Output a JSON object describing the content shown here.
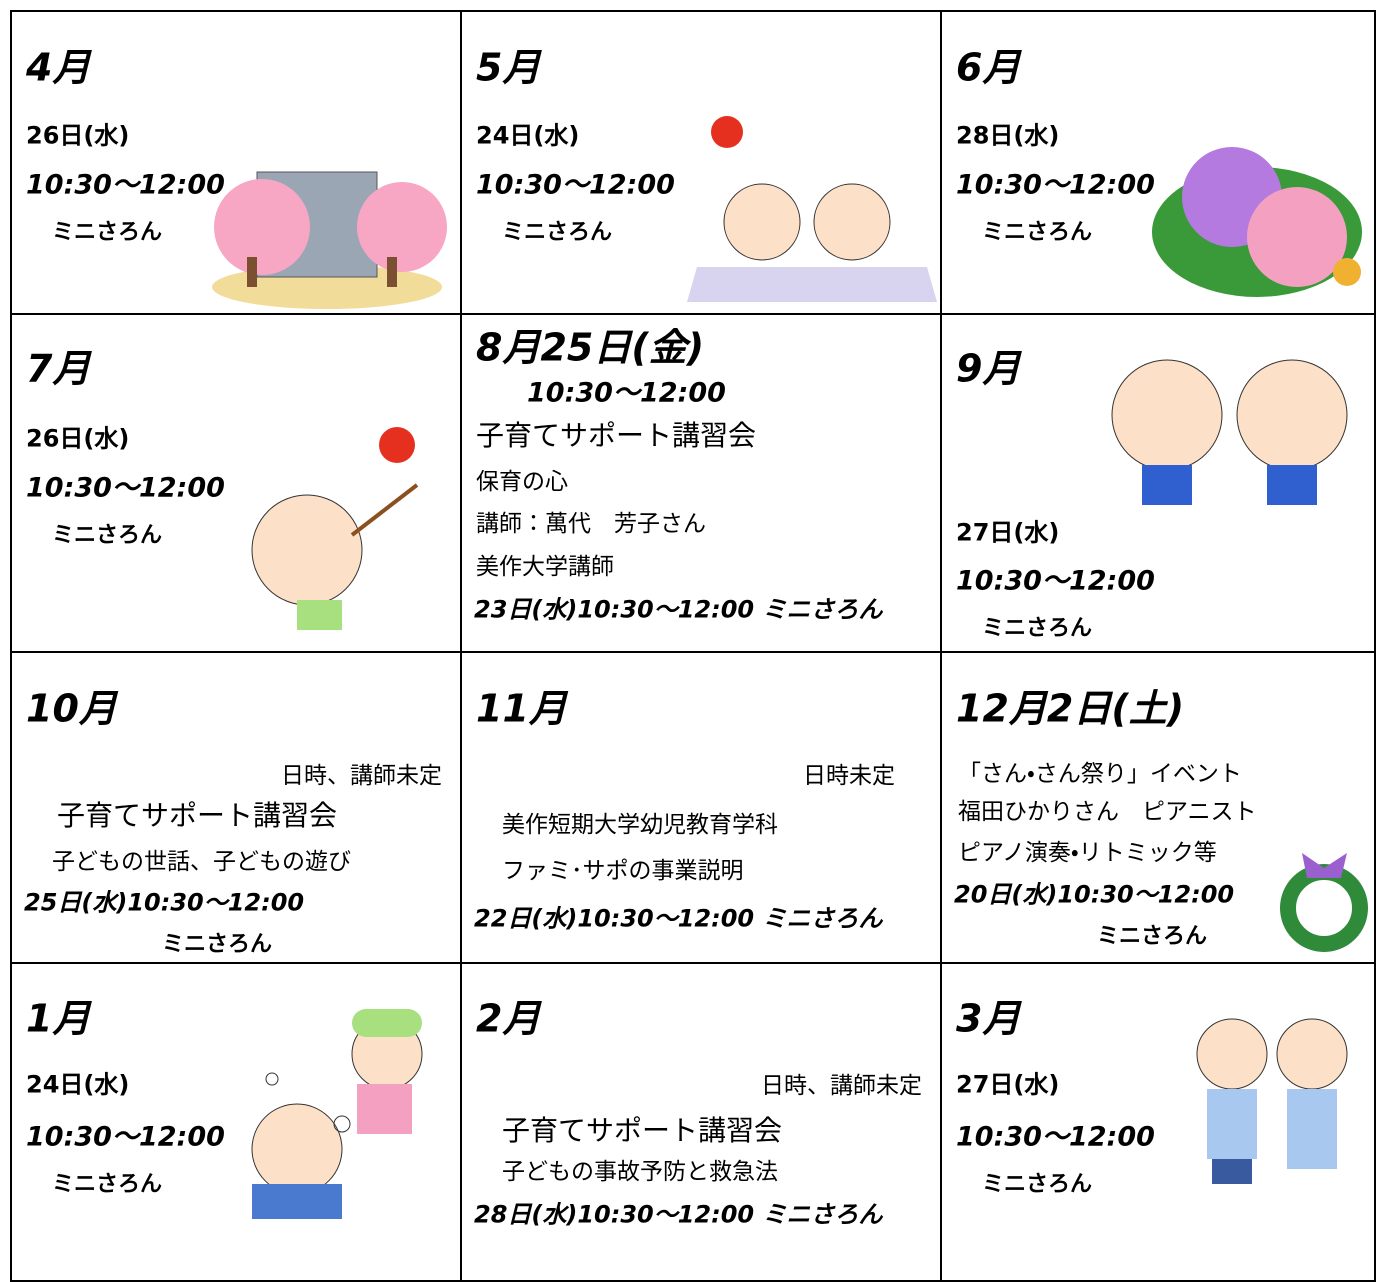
{
  "cells": [
    {
      "heading": "4月",
      "date": "26日(水)",
      "time": "10:30～12:00",
      "place": "ミニさろん"
    },
    {
      "heading": "5月",
      "date": "24日(水)",
      "time": "10:30～12:00",
      "place": "ミニさろん"
    },
    {
      "heading": "6月",
      "date": "28日(水)",
      "time": "10:30～12:00",
      "place": "ミニさろん"
    },
    {
      "heading": "7月",
      "date": "26日(水)",
      "time": "10:30～12:00",
      "place": "ミニさろん"
    },
    {
      "heading": "8月25日(金)",
      "time": "10:30～12:00",
      "lines": [
        "子育てサポート講習会",
        "保育の心",
        "講師：萬代　芳子さん",
        "美作大学講師"
      ],
      "footer": "23日(水)10:30～12:00 ミニさろん"
    },
    {
      "heading": "9月",
      "date": "27日(水)",
      "time": "10:30～12:00",
      "place": "ミニさろん"
    },
    {
      "heading": "10月",
      "lines": [
        "日時、講師未定",
        "子育てサポート講習会",
        "子どもの世話、子どもの遊び"
      ],
      "footer": "25日(水)10:30～12:00",
      "place": "ミニさろん"
    },
    {
      "heading": "11月",
      "lines": [
        "日時未定",
        "美作短期大学幼児教育学科",
        "ファミ･サポの事業説明"
      ],
      "footer": "22日(水)10:30～12:00 ミニさろん"
    },
    {
      "heading": "12月2日(土)",
      "lines": [
        "「さん・さん祭り」イベント",
        "福田ひかりさん　ピアニスト",
        "ピアノ演奏・リトミック等"
      ],
      "footer": "20日(水)10:30～12:00",
      "place": "ミニさろん"
    },
    {
      "heading": "1月",
      "date": "24日(水)",
      "time": "10:30～12:00",
      "place": "ミニさろん"
    },
    {
      "heading": "2月",
      "lines": [
        "日時、講師未定",
        "子育てサポート講習会",
        "子どもの事故予防と救急法"
      ],
      "footer": "28日(水)10:30～12:00 ミニさろん"
    },
    {
      "heading": "3月",
      "date": "27日(水)",
      "time": "10:30～12:00",
      "place": "ミニさろん"
    }
  ]
}
